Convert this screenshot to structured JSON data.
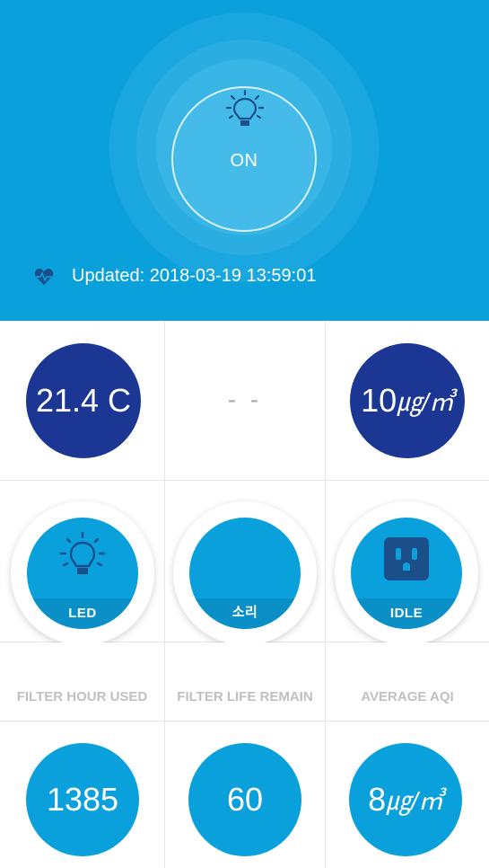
{
  "header": {
    "state": "ON",
    "updated": "Updated: 2018-03-19 13:59:01",
    "icons": {
      "bulb": "lightbulb-icon",
      "status": "heartbeat-icon"
    }
  },
  "sensors": {
    "temperature": "21.4 C",
    "middle": "- -",
    "dust_value": "10",
    "dust_unit": "㎍/㎥"
  },
  "toggles": [
    {
      "label": "LED",
      "icon": "lightbulb-icon"
    },
    {
      "label": "소리",
      "icon": ""
    },
    {
      "label": "IDLE",
      "icon": "power-outlet-icon"
    }
  ],
  "stats": {
    "labels": [
      "FILTER HOUR USED",
      "FILTER LIFE REMAIN",
      "AVERAGE AQI"
    ],
    "filter_hour_used": "1385",
    "filter_life_remain": "60",
    "aqi_value": "8",
    "aqi_unit": "㎍/㎥"
  },
  "colors": {
    "header_bg": "#0aa0dc",
    "dark_circle": "#1b3793",
    "accent": "#0aa0dc",
    "label_gray": "#c0c0c0"
  }
}
